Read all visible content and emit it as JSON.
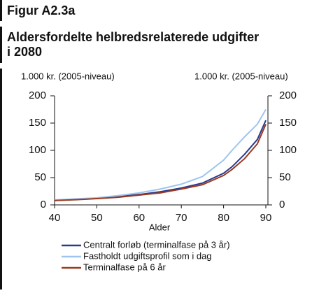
{
  "chart_data": {
    "type": "line",
    "figure_label": "Figur A2.3a",
    "title": "Aldersfordelte helbredsrelaterede udgifter",
    "title_line2": "i 2080",
    "ylabel": "1.000 kr. (2005-niveau)",
    "y2label": "1.000 kr. (2005-niveau)",
    "xlabel": "Alder",
    "x": [
      40,
      45,
      50,
      55,
      60,
      65,
      70,
      75,
      80,
      82,
      85,
      88,
      90
    ],
    "series": [
      {
        "name": "Centralt forløb (terminalfase på 3 år)",
        "color": "#2b3a8f",
        "values": [
          8,
          10,
          12,
          15,
          19,
          24,
          31,
          40,
          58,
          70,
          93,
          120,
          155
        ]
      },
      {
        "name": "Fastholdt udgiftsprofil som i dag",
        "color": "#9ec5ef",
        "values": [
          9,
          11,
          13,
          17,
          22,
          29,
          38,
          52,
          82,
          100,
          125,
          148,
          175
        ]
      },
      {
        "name": "Terminalfase på 6 år",
        "color": "#9b3a1e",
        "values": [
          8,
          9.5,
          11.5,
          14,
          18,
          22,
          29,
          37,
          54,
          65,
          85,
          112,
          148
        ]
      }
    ],
    "xlim": [
      40,
      90
    ],
    "xticks": [
      40,
      50,
      60,
      70,
      80,
      90
    ],
    "ylim": [
      0,
      200
    ],
    "yticks": [
      0,
      50,
      100,
      150,
      200
    ],
    "y2lim": [
      0,
      200
    ],
    "y2ticks": [
      0,
      50,
      100,
      150,
      200
    ],
    "grid": false
  }
}
